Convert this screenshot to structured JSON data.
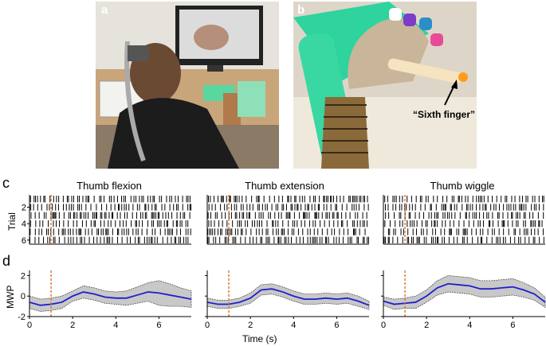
{
  "panels": {
    "a": {
      "letter": "a"
    },
    "b": {
      "letter": "b",
      "annotation": "“Sixth finger”"
    },
    "c": {
      "letter": "c",
      "ylabel": "Trial",
      "yticks": [
        "2",
        "4",
        "6"
      ]
    },
    "d": {
      "letter": "d",
      "ylabel": "MWP",
      "yticks": [
        "2",
        "0",
        "-2"
      ],
      "xticks": [
        "0",
        "2",
        "4",
        "6"
      ],
      "xlabel": "Time (s)"
    }
  },
  "columns": [
    {
      "title": "Thumb flexion"
    },
    {
      "title": "Thumb extension"
    },
    {
      "title": "Thumb wiggle"
    }
  ],
  "colors": {
    "mean_line": "#1f1fcc",
    "band": "#c8c8c8",
    "onset_line": "#d2691e",
    "raster": "#000000"
  },
  "chart_data": [
    {
      "type": "line",
      "title": "Thumb flexion",
      "xlabel": "",
      "ylabel": "MWP",
      "xlim": [
        0,
        7.5
      ],
      "ylim": [
        -2,
        2.5
      ],
      "onset": 1.0,
      "series": [
        {
          "values_x": [
            0,
            0.5,
            1,
            1.5,
            2,
            2.5,
            3,
            3.5,
            4,
            4.5,
            5,
            5.5,
            6,
            6.5,
            7,
            7.5
          ],
          "values": [
            -0.6,
            -0.9,
            -0.8,
            -0.6,
            0.0,
            0.4,
            0.2,
            -0.1,
            -0.2,
            -0.2,
            0.1,
            0.4,
            0.3,
            0.1,
            -0.1,
            -0.3
          ],
          "band": [
            0.6,
            0.6,
            0.6,
            0.6,
            0.5,
            0.6,
            0.6,
            0.6,
            0.6,
            0.7,
            0.8,
            0.9,
            1.2,
            1.1,
            0.9,
            0.8
          ]
        }
      ]
    },
    {
      "type": "line",
      "title": "Thumb extension",
      "xlabel": "",
      "ylabel": "",
      "xlim": [
        0,
        7.5
      ],
      "ylim": [
        -2,
        2.5
      ],
      "onset": 1.0,
      "series": [
        {
          "values_x": [
            0,
            0.5,
            1,
            1.5,
            2,
            2.5,
            3,
            3.5,
            4,
            4.5,
            5,
            5.5,
            6,
            6.5,
            7,
            7.5
          ],
          "values": [
            -0.6,
            -0.8,
            -0.8,
            -0.6,
            -0.2,
            0.6,
            0.7,
            0.4,
            0.0,
            -0.3,
            -0.3,
            -0.2,
            -0.3,
            -0.2,
            -0.5,
            -0.9
          ],
          "band": [
            0.4,
            0.4,
            0.4,
            0.4,
            0.5,
            0.5,
            0.5,
            0.5,
            0.5,
            0.5,
            0.5,
            0.5,
            0.5,
            0.5,
            0.5,
            0.4
          ]
        }
      ]
    },
    {
      "type": "line",
      "title": "Thumb wiggle",
      "xlabel": "",
      "ylabel": "",
      "xlim": [
        0,
        7.5
      ],
      "ylim": [
        -2,
        2.5
      ],
      "onset": 1.0,
      "series": [
        {
          "values_x": [
            0,
            0.5,
            1,
            1.5,
            2,
            2.5,
            3,
            3.5,
            4,
            4.5,
            5,
            5.5,
            6,
            6.5,
            7,
            7.5
          ],
          "values": [
            -0.5,
            -0.8,
            -0.7,
            -0.6,
            0.0,
            0.8,
            1.2,
            1.1,
            1.0,
            0.7,
            0.7,
            0.8,
            0.9,
            0.6,
            0.2,
            -0.6
          ],
          "band": [
            0.4,
            0.5,
            0.5,
            0.6,
            0.6,
            0.7,
            0.8,
            0.8,
            0.8,
            0.8,
            0.8,
            0.8,
            0.8,
            0.7,
            0.6,
            0.5
          ]
        }
      ]
    }
  ],
  "raster_data": {
    "xlim": [
      0,
      7.5
    ],
    "trials": 6,
    "onset": 1.0
  }
}
